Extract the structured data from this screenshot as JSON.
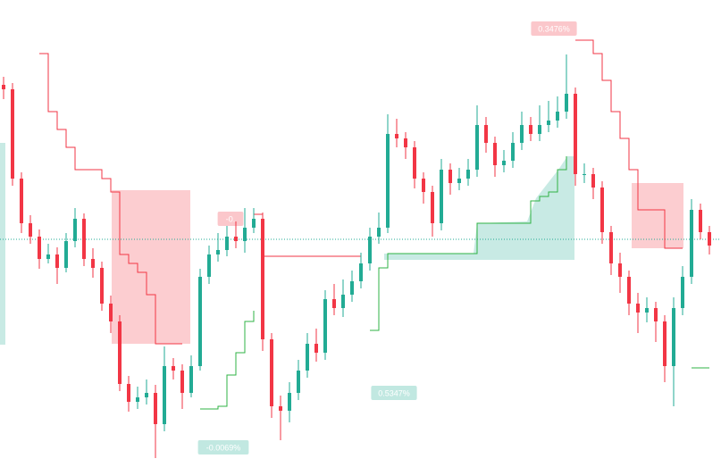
{
  "chart_data": {
    "type": "candlestick",
    "ylim": [
      0,
      523
    ],
    "up_color": "#22ab94",
    "down_color": "#f23645",
    "open": [
      428,
      423,
      323,
      273,
      258,
      233,
      238,
      223,
      253,
      278,
      233,
      223,
      183,
      163,
      93,
      73,
      78,
      83,
      48,
      113,
      108,
      83,
      113,
      213,
      238,
      243,
      258,
      253,
      268,
      278,
      143,
      68,
      63,
      83,
      108,
      138,
      128,
      188,
      178,
      193,
      208,
      228,
      258,
      268,
      373,
      368,
      358,
      323,
      308,
      273,
      333,
      318,
      323,
      333,
      383,
      363,
      338,
      343,
      363,
      383,
      373,
      383,
      388,
      398,
      418,
      328,
      328,
      313,
      263,
      228,
      213,
      183,
      173,
      178,
      163,
      113,
      178,
      213,
      288,
      263
    ],
    "high": [
      437,
      430,
      330,
      282,
      266,
      250,
      246,
      262,
      290,
      284,
      245,
      230,
      192,
      170,
      102,
      90,
      98,
      92,
      135,
      122,
      115,
      125,
      222,
      248,
      262,
      270,
      275,
      290,
      290,
      285,
      150,
      80,
      95,
      120,
      150,
      155,
      198,
      205,
      210,
      220,
      240,
      268,
      285,
      395,
      390,
      375,
      365,
      330,
      315,
      345,
      340,
      335,
      345,
      405,
      392,
      370,
      355,
      375,
      398,
      392,
      405,
      410,
      415,
      462,
      425,
      340,
      335,
      320,
      270,
      240,
      220,
      195,
      190,
      185,
      170,
      190,
      225,
      300,
      295,
      270
    ],
    "low": [
      412,
      315,
      262,
      250,
      222,
      228,
      205,
      218,
      246,
      225,
      212,
      175,
      150,
      85,
      62,
      65,
      70,
      10,
      40,
      98,
      65,
      78,
      108,
      205,
      230,
      236,
      245,
      240,
      262,
      130,
      55,
      30,
      50,
      75,
      100,
      118,
      120,
      170,
      168,
      185,
      200,
      220,
      250,
      262,
      358,
      345,
      312,
      295,
      258,
      265,
      305,
      310,
      315,
      325,
      352,
      325,
      330,
      335,
      355,
      365,
      365,
      375,
      380,
      390,
      315,
      318,
      300,
      250,
      215,
      195,
      170,
      150,
      162,
      140,
      95,
      68,
      170,
      205,
      255,
      238
    ],
    "close": [
      423,
      323,
      273,
      258,
      233,
      238,
      223,
      253,
      278,
      233,
      223,
      183,
      163,
      93,
      73,
      78,
      83,
      48,
      113,
      108,
      83,
      113,
      213,
      238,
      243,
      258,
      253,
      268,
      278,
      143,
      68,
      63,
      83,
      108,
      138,
      128,
      188,
      178,
      193,
      208,
      228,
      258,
      268,
      373,
      368,
      358,
      323,
      308,
      273,
      333,
      318,
      323,
      333,
      383,
      363,
      338,
      343,
      363,
      383,
      373,
      383,
      388,
      398,
      418,
      328,
      328,
      313,
      263,
      228,
      213,
      183,
      173,
      178,
      163,
      113,
      178,
      213,
      288,
      263,
      248
    ],
    "series": [
      {
        "name": "upper",
        "color": "#f23645",
        "values": [
          null,
          null,
          null,
          null,
          463,
          398,
          378,
          358,
          333,
          333,
          333,
          323,
          308,
          238,
          228,
          218,
          193,
          138,
          138,
          138,
          138,
          null,
          null,
          null,
          null,
          null,
          null,
          null,
          283,
          236,
          236,
          236,
          236,
          236,
          236,
          236,
          236,
          236,
          236,
          236,
          236,
          null,
          null,
          null,
          null,
          null,
          null,
          null,
          null,
          null,
          null,
          null,
          null,
          null,
          null,
          null,
          null,
          null,
          null,
          null,
          null,
          null,
          null,
          null,
          478,
          478,
          463,
          433,
          398,
          368,
          333,
          288,
          288,
          288,
          245,
          245,
          245,
          null,
          null,
          null
        ]
      },
      {
        "name": "lower",
        "color": "#2fb344",
        "values": [
          363,
          null,
          null,
          null,
          null,
          null,
          null,
          null,
          null,
          null,
          null,
          null,
          null,
          null,
          null,
          null,
          null,
          null,
          null,
          null,
          null,
          null,
          65,
          65,
          68,
          103,
          128,
          163,
          175,
          null,
          null,
          null,
          null,
          null,
          null,
          null,
          null,
          null,
          null,
          null,
          null,
          153,
          223,
          239,
          239,
          239,
          239,
          239,
          239,
          239,
          239,
          239,
          239,
          273,
          273,
          273,
          273,
          273,
          273,
          298,
          303,
          308,
          333,
          348,
          null,
          null,
          null,
          null,
          null,
          null,
          null,
          null,
          null,
          null,
          null,
          null,
          null,
          111,
          111,
          111
        ]
      }
    ],
    "price_line": 255,
    "annotations": [
      {
        "text": "0.3476%",
        "color": "#f23645"
      },
      {
        "text": "-0.0069%",
        "color": "#22ab94"
      },
      {
        "text": "0.5347%",
        "color": "#22ab94"
      },
      {
        "text": "-0.",
        "color": "#f23645"
      }
    ]
  }
}
